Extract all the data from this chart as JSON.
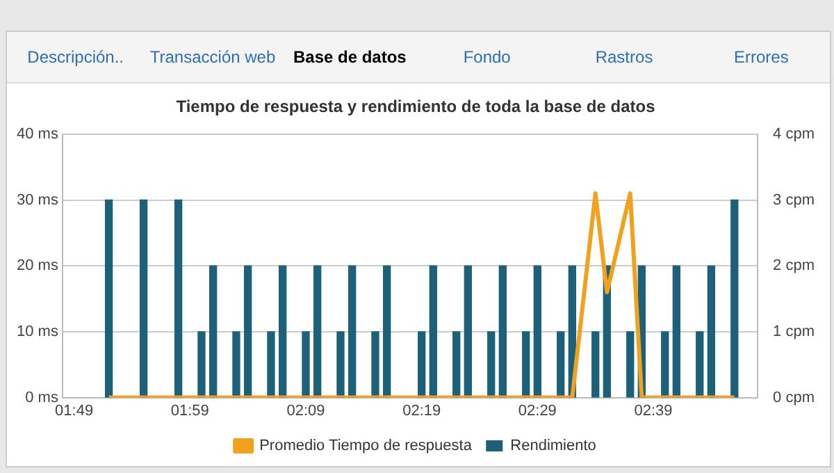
{
  "chart_data": {
    "type": "bar",
    "title": "Tiempo de respuesta y rendimiento de toda la base de datos",
    "annotations": [
      "Descripción..",
      "Transacción web",
      "Base de datos",
      "Fondo",
      "Rastros",
      "Errores"
    ],
    "xlim": [
      1.8,
      2.8
    ],
    "xticks": [
      {
        "value": 1.8167,
        "label": "01:49"
      },
      {
        "value": 1.9833,
        "label": "01:59"
      },
      {
        "value": 2.15,
        "label": "02:09"
      },
      {
        "value": 2.3167,
        "label": "02:19"
      },
      {
        "value": 2.4833,
        "label": "02:29"
      },
      {
        "value": 2.65,
        "label": "02:39"
      }
    ],
    "ylim": [
      0,
      40
    ],
    "yticks": [
      {
        "value": 0,
        "label": "0 ms"
      },
      {
        "value": 10,
        "label": "10 ms"
      },
      {
        "value": 20,
        "label": "20 ms"
      },
      {
        "value": 30,
        "label": "30 ms"
      },
      {
        "value": 40,
        "label": "40 ms"
      }
    ],
    "y2lim": [
      0,
      4
    ],
    "y2ticks": [
      {
        "value": 0,
        "label": "0 cpm"
      },
      {
        "value": 1,
        "label": "1 cpm"
      },
      {
        "value": 2,
        "label": "2 cpm"
      },
      {
        "value": 3,
        "label": "3 cpm"
      },
      {
        "value": 4,
        "label": "4 cpm"
      }
    ],
    "grid": "y",
    "legend": "bottom",
    "marker": "none",
    "series": [
      {
        "name": "Promedio Tiempo de respuesta",
        "type": "line",
        "color": "#f0a21e",
        "x": [
          1.8667,
          2.5333,
          2.5667,
          2.5833,
          2.6167,
          2.6333,
          2.7667
        ],
        "values": [
          0,
          0,
          31,
          16,
          31,
          0,
          0
        ]
      },
      {
        "name": "Rendimiento",
        "axis": "y2",
        "color": "#1d6079",
        "x": [
          1.8667,
          1.9167,
          1.9667,
          2.0,
          2.0167,
          2.05,
          2.0667,
          2.1,
          2.1167,
          2.15,
          2.1667,
          2.2,
          2.2167,
          2.25,
          2.2667,
          2.3167,
          2.3333,
          2.3667,
          2.3833,
          2.4167,
          2.4333,
          2.4667,
          2.4833,
          2.5167,
          2.5333,
          2.5667,
          2.5833,
          2.6167,
          2.6333,
          2.6667,
          2.6833,
          2.7167,
          2.7333,
          2.7667
        ],
        "values": [
          3,
          3,
          3,
          1,
          2,
          1,
          2,
          1,
          2,
          1,
          2,
          1,
          2,
          1,
          2,
          1,
          2,
          1,
          2,
          1,
          2,
          1,
          2,
          1,
          2,
          1,
          2,
          1,
          2,
          1,
          2,
          1,
          2,
          3
        ]
      }
    ]
  }
}
